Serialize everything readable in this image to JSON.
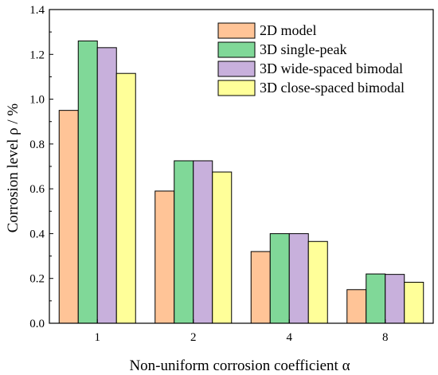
{
  "chart_data": {
    "type": "bar",
    "categories": [
      "1",
      "2",
      "4",
      "8"
    ],
    "series": [
      {
        "name": "2D model",
        "color": "#FFC497",
        "values": [
          0.95,
          0.59,
          0.32,
          0.15
        ]
      },
      {
        "name": "3D single-peak",
        "color": "#80D898",
        "values": [
          1.26,
          0.725,
          0.4,
          0.22
        ]
      },
      {
        "name": "3D wide-spaced bimodal",
        "color": "#C8B0DC",
        "values": [
          1.23,
          0.725,
          0.4,
          0.218
        ]
      },
      {
        "name": "3D close-spaced bimodal",
        "color": "#FFFF99",
        "values": [
          1.115,
          0.675,
          0.365,
          0.183
        ]
      }
    ],
    "xlabel": "Non-uniform corrosion coefficient α",
    "ylabel": "Corrosion level ρ / %",
    "ylim": [
      0.0,
      1.4
    ],
    "yticks": [
      "0.0",
      "0.2",
      "0.4",
      "0.6",
      "0.8",
      "1.0",
      "1.2",
      "1.4"
    ],
    "legend_position": "top-right",
    "grid": false
  }
}
